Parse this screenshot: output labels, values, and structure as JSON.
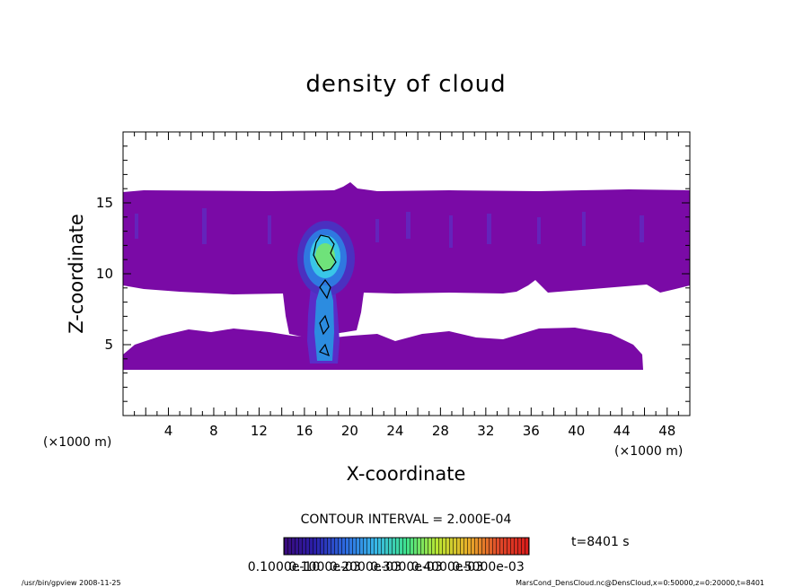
{
  "chart_data": {
    "type": "heatmap",
    "title": "density of cloud",
    "xlabel": "X-coordinate",
    "ylabel": "Z-coordinate",
    "x_unit": "(×1000 m)",
    "y_unit": "(×1000 m)",
    "xlim": [
      0,
      50
    ],
    "ylim": [
      0,
      20
    ],
    "x_ticks": [
      4,
      8,
      12,
      16,
      20,
      24,
      28,
      32,
      36,
      40,
      44,
      48
    ],
    "y_ticks": [
      5,
      10,
      15
    ],
    "contour_interval": "CONTOUR INTERVAL = 2.000E-04",
    "time_label": "t=8401 s",
    "colorbar_labels": [
      "0.1000e-10",
      "0.1000e-03",
      "0.2000e-03",
      "0.3000e-03",
      "0.4000e-03",
      "0.5000e-03"
    ],
    "colorbar_range": [
      0,
      0.0006
    ],
    "colormap": [
      "#3a0a7a",
      "#2a1ea8",
      "#2d6be0",
      "#38b8e8",
      "#3fe28c",
      "#b9e632",
      "#e8b02a",
      "#e04a2a",
      "#d81a1a"
    ],
    "regions": [
      {
        "name": "upper-cloud-layer",
        "value": 2e-05,
        "x": [
          0,
          50
        ],
        "z": [
          9.3,
          15.8
        ]
      },
      {
        "name": "lower-cloud-layer",
        "value": 2e-05,
        "x": [
          2,
          45.5
        ],
        "z": [
          3.5,
          6.0
        ]
      },
      {
        "name": "plume-core",
        "value": 0.0002,
        "x_center": 17.8,
        "z_center": 11.2
      },
      {
        "name": "plume-column",
        "value": 0.00012,
        "x_center": 17.8,
        "z": [
          3.5,
          9
        ]
      }
    ],
    "footer_left": "/usr/bin/gpview   2008-11-25",
    "footer_right": "MarsCond_DensCloud.nc@DensCloud,x=0:50000,z=0:20000,t=8401",
    "grid": false
  }
}
